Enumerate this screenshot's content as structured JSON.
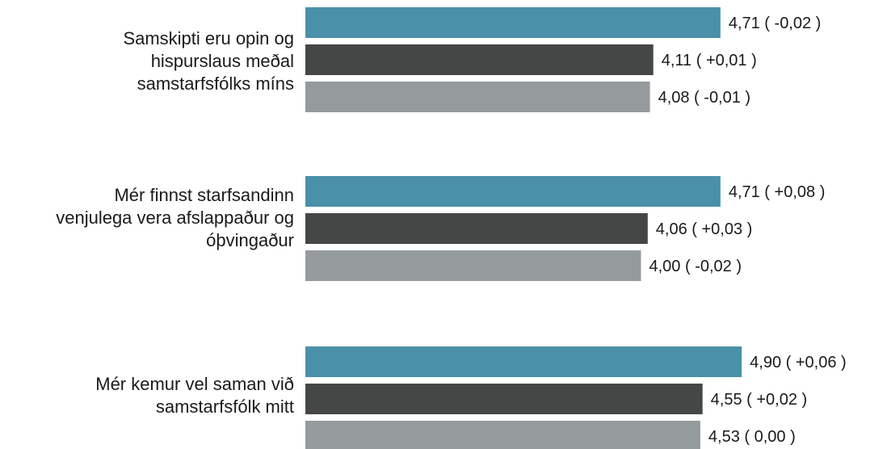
{
  "chart_data": {
    "type": "bar",
    "orientation": "horizontal",
    "categories": [
      "Samskipti eru opin og\nhispurslaus meðal\nsamstarfsfólks míns",
      "Mér finnst starfsandinn\nvenjulega vera afslappaður og\nóþvingaður",
      "Mér kemur vel saman við\nsamstarfsfólk mitt"
    ],
    "series": [
      {
        "values": [
          4.71,
          4.71,
          4.9
        ],
        "changes": [
          "-0,02",
          "+0,08",
          "+0,06"
        ],
        "data_labels": [
          "4,71 ( -0,02 )",
          "4,71 ( +0,08 )",
          "4,90 ( +0,06 )"
        ],
        "color": "#4a90a8"
      },
      {
        "values": [
          4.11,
          4.06,
          4.55
        ],
        "changes": [
          "+0,01",
          "+0,03",
          "+0,02"
        ],
        "data_labels": [
          "4,11 ( +0,01 )",
          "4,06 ( +0,03 )",
          "4,55 ( +0,02 )"
        ],
        "color": "#444746"
      },
      {
        "values": [
          4.08,
          4.0,
          4.53
        ],
        "changes": [
          "-0,01",
          "-0,02",
          "0,00"
        ],
        "data_labels": [
          "4,08 ( -0,01 )",
          "4,00 ( -0,02 )",
          "4,53 ( 0,00 )"
        ],
        "color": "#959b9c"
      }
    ],
    "title": "",
    "xlabel": "",
    "ylabel": "",
    "xlim": [
      1,
      5
    ],
    "grid": false,
    "legend": "none"
  }
}
